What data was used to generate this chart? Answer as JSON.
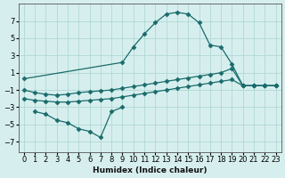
{
  "xlabel": "Humidex (Indice chaleur)",
  "bg_color": "#d6efee",
  "grid_color": "#b0d8d5",
  "line_color": "#1a6b6b",
  "marker": "D",
  "markersize": 2.5,
  "linewidth": 0.9,
  "xlim": [
    -0.5,
    23.5
  ],
  "ylim": [
    -8.2,
    9.0
  ],
  "yticks": [
    -7,
    -5,
    -3,
    -1,
    1,
    3,
    5,
    7
  ],
  "xticks": [
    0,
    1,
    2,
    3,
    4,
    5,
    6,
    7,
    8,
    9,
    10,
    11,
    12,
    13,
    14,
    15,
    16,
    17,
    18,
    19,
    20,
    21,
    22,
    23
  ],
  "series": [
    {
      "x": [
        0,
        9,
        10,
        11,
        12,
        13,
        14,
        15,
        16,
        17,
        18,
        19,
        20,
        21,
        22,
        23
      ],
      "y": [
        0.3,
        2.2,
        4.0,
        5.5,
        6.8,
        7.8,
        8.0,
        7.8,
        6.8,
        4.2,
        4.0,
        2.0,
        -0.5,
        -0.5,
        -0.5,
        -0.5
      ]
    },
    {
      "x": [
        0,
        1,
        2,
        3,
        4,
        5,
        6,
        7,
        8,
        9,
        10,
        11,
        12,
        13,
        14,
        15,
        16,
        17,
        18,
        19,
        20,
        21,
        22,
        23
      ],
      "y": [
        -1.0,
        -1.3,
        -1.5,
        -1.6,
        -1.5,
        -1.3,
        -1.2,
        -1.1,
        -1.0,
        -0.8,
        -0.6,
        -0.4,
        -0.2,
        0.0,
        0.2,
        0.4,
        0.6,
        0.8,
        1.0,
        1.5,
        -0.5,
        -0.5,
        -0.5,
        -0.5
      ]
    },
    {
      "x": [
        0,
        1,
        2,
        3,
        4,
        5,
        6,
        7,
        8,
        9,
        10,
        11,
        12,
        13,
        14,
        15,
        16,
        17,
        18,
        19,
        20,
        21,
        22,
        23
      ],
      "y": [
        -2.0,
        -2.2,
        -2.3,
        -2.4,
        -2.4,
        -2.3,
        -2.2,
        -2.1,
        -2.0,
        -1.8,
        -1.6,
        -1.4,
        -1.2,
        -1.0,
        -0.8,
        -0.6,
        -0.4,
        -0.2,
        0.0,
        0.2,
        -0.5,
        -0.5,
        -0.5,
        -0.5
      ]
    },
    {
      "x": [
        1,
        2,
        3,
        4,
        5,
        6,
        7,
        8,
        9
      ],
      "y": [
        -3.5,
        -3.8,
        -4.5,
        -4.8,
        -5.5,
        -5.8,
        -6.5,
        -3.5,
        -3.0
      ]
    }
  ]
}
